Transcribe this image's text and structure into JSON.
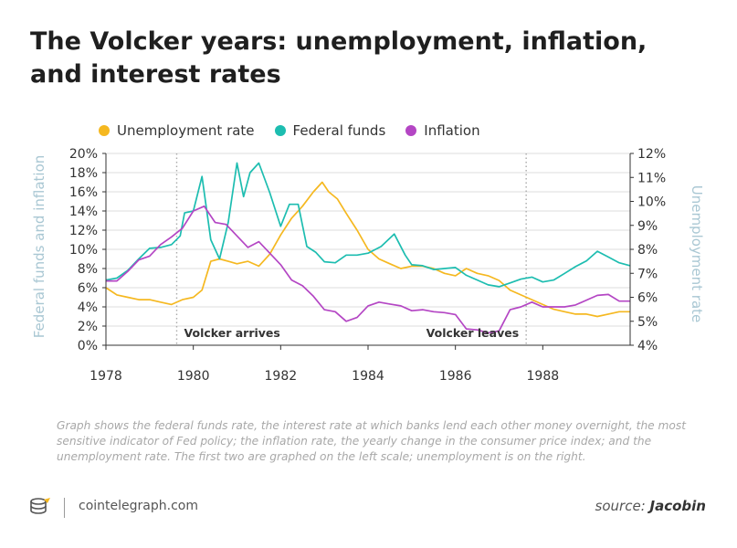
{
  "title": "The Volcker years: unemployment, inflation, and interest rates",
  "caption": "Graph shows the federal funds rate, the interest rate at which banks lend each other money overnight, the most sensitive indicator of Fed policy; the inflation rate, the yearly change in the consumer price index; and the unemployment rate. The first two are graphed on the left scale; unemployment is on the right.",
  "footer": {
    "site": "cointelegraph.com",
    "source_label": "source:",
    "source_name": "Jacobin"
  },
  "colors": {
    "unemployment": "#f5b820",
    "fedfunds": "#1dbdb0",
    "inflation": "#b446c4",
    "axis_label": "#a9c7d3",
    "grid": "#dddddd"
  },
  "chart_data": {
    "type": "line",
    "xlabel": "",
    "y_left_label": "Federal funds and inflation",
    "y_right_label": "Unemployment rate",
    "xlim": [
      1978,
      1990
    ],
    "ylim_left": [
      0,
      20
    ],
    "ylim_right": [
      4,
      12
    ],
    "x_ticks": [
      "1978",
      "1980",
      "1982",
      "1984",
      "1986",
      "1988"
    ],
    "x_tick_values": [
      1978,
      1980,
      1982,
      1984,
      1986,
      1988
    ],
    "y_left_ticks": [
      "0%",
      "2%",
      "4%",
      "6%",
      "8%",
      "10%",
      "12%",
      "14%",
      "16%",
      "18%",
      "20%"
    ],
    "y_left_tick_values": [
      0,
      2,
      4,
      6,
      8,
      10,
      12,
      14,
      16,
      18,
      20
    ],
    "y_right_ticks": [
      "4%",
      "5%",
      "6%",
      "7%",
      "8%",
      "9%",
      "10%",
      "11%",
      "12%"
    ],
    "y_right_tick_values": [
      4,
      5,
      6,
      7,
      8,
      9,
      10,
      11,
      12
    ],
    "annotations": [
      {
        "text": "Volcker arrives",
        "x": 1979.62
      },
      {
        "text": "Volcker leaves",
        "x": 1987.62
      }
    ],
    "legend_position": "top-left",
    "series": [
      {
        "name": "Unemployment rate",
        "axis": "right",
        "color": "#f5b820",
        "x": [
          1978.0,
          1978.25,
          1978.5,
          1978.75,
          1979.0,
          1979.25,
          1979.5,
          1979.75,
          1980.0,
          1980.2,
          1980.4,
          1980.6,
          1980.8,
          1981.0,
          1981.25,
          1981.5,
          1981.75,
          1982.0,
          1982.25,
          1982.5,
          1982.75,
          1982.95,
          1983.1,
          1983.3,
          1983.5,
          1983.75,
          1984.0,
          1984.25,
          1984.5,
          1984.75,
          1985.0,
          1985.25,
          1985.5,
          1985.75,
          1986.0,
          1986.25,
          1986.5,
          1986.75,
          1987.0,
          1987.25,
          1987.5,
          1987.75,
          1988.0,
          1988.25,
          1988.5,
          1988.75,
          1989.0,
          1989.25,
          1989.5,
          1989.75,
          1990.0
        ],
        "y": [
          6.4,
          6.1,
          6.0,
          5.9,
          5.9,
          5.8,
          5.7,
          5.9,
          6.0,
          6.3,
          7.5,
          7.6,
          7.5,
          7.4,
          7.5,
          7.3,
          7.8,
          8.6,
          9.3,
          9.8,
          10.4,
          10.8,
          10.4,
          10.1,
          9.5,
          8.8,
          8.0,
          7.6,
          7.4,
          7.2,
          7.3,
          7.3,
          7.2,
          7.0,
          6.9,
          7.2,
          7.0,
          6.9,
          6.7,
          6.3,
          6.1,
          5.9,
          5.7,
          5.5,
          5.4,
          5.3,
          5.3,
          5.2,
          5.3,
          5.4,
          5.4
        ]
      },
      {
        "name": "Federal funds",
        "axis": "left",
        "color": "#1dbdb0",
        "x": [
          1978.0,
          1978.25,
          1978.5,
          1978.75,
          1979.0,
          1979.25,
          1979.5,
          1979.7,
          1979.8,
          1980.0,
          1980.2,
          1980.4,
          1980.6,
          1980.8,
          1981.0,
          1981.15,
          1981.3,
          1981.5,
          1981.75,
          1982.0,
          1982.2,
          1982.4,
          1982.6,
          1982.8,
          1983.0,
          1983.25,
          1983.5,
          1983.75,
          1984.0,
          1984.3,
          1984.6,
          1984.85,
          1985.0,
          1985.25,
          1985.5,
          1985.75,
          1986.0,
          1986.25,
          1986.5,
          1986.75,
          1987.0,
          1987.25,
          1987.5,
          1987.75,
          1988.0,
          1988.25,
          1988.5,
          1988.75,
          1989.0,
          1989.25,
          1989.5,
          1989.75,
          1990.0
        ],
        "y": [
          6.8,
          7.0,
          7.8,
          9.0,
          10.1,
          10.2,
          10.5,
          11.4,
          13.8,
          14.0,
          17.6,
          11.0,
          9.0,
          12.8,
          19.0,
          15.5,
          18.0,
          19.0,
          15.9,
          12.4,
          14.7,
          14.7,
          10.3,
          9.7,
          8.7,
          8.6,
          9.4,
          9.4,
          9.6,
          10.3,
          11.6,
          9.4,
          8.4,
          8.3,
          7.9,
          8.0,
          8.1,
          7.3,
          6.8,
          6.3,
          6.1,
          6.5,
          6.9,
          7.1,
          6.6,
          6.8,
          7.5,
          8.2,
          8.8,
          9.8,
          9.2,
          8.6,
          8.3
        ]
      },
      {
        "name": "Inflation",
        "axis": "left",
        "color": "#b446c4",
        "x": [
          1978.0,
          1978.25,
          1978.5,
          1978.75,
          1979.0,
          1979.25,
          1979.5,
          1979.75,
          1980.0,
          1980.25,
          1980.5,
          1980.75,
          1981.0,
          1981.25,
          1981.5,
          1981.75,
          1982.0,
          1982.25,
          1982.5,
          1982.75,
          1983.0,
          1983.25,
          1983.5,
          1983.75,
          1984.0,
          1984.25,
          1984.5,
          1984.75,
          1985.0,
          1985.25,
          1985.5,
          1985.75,
          1986.0,
          1986.25,
          1986.5,
          1986.75,
          1987.0,
          1987.25,
          1987.5,
          1987.75,
          1988.0,
          1988.25,
          1988.5,
          1988.75,
          1989.0,
          1989.25,
          1989.5,
          1989.75,
          1990.0
        ],
        "y": [
          6.7,
          6.7,
          7.7,
          8.9,
          9.3,
          10.5,
          11.3,
          12.2,
          14.0,
          14.5,
          12.8,
          12.6,
          11.4,
          10.2,
          10.8,
          9.6,
          8.4,
          6.8,
          6.2,
          5.1,
          3.7,
          3.5,
          2.5,
          2.9,
          4.1,
          4.5,
          4.3,
          4.1,
          3.6,
          3.7,
          3.5,
          3.4,
          3.2,
          1.7,
          1.6,
          1.3,
          1.5,
          3.7,
          4.0,
          4.5,
          4.0,
          4.0,
          4.0,
          4.2,
          4.7,
          5.2,
          5.3,
          4.6,
          4.6
        ]
      }
    ]
  }
}
